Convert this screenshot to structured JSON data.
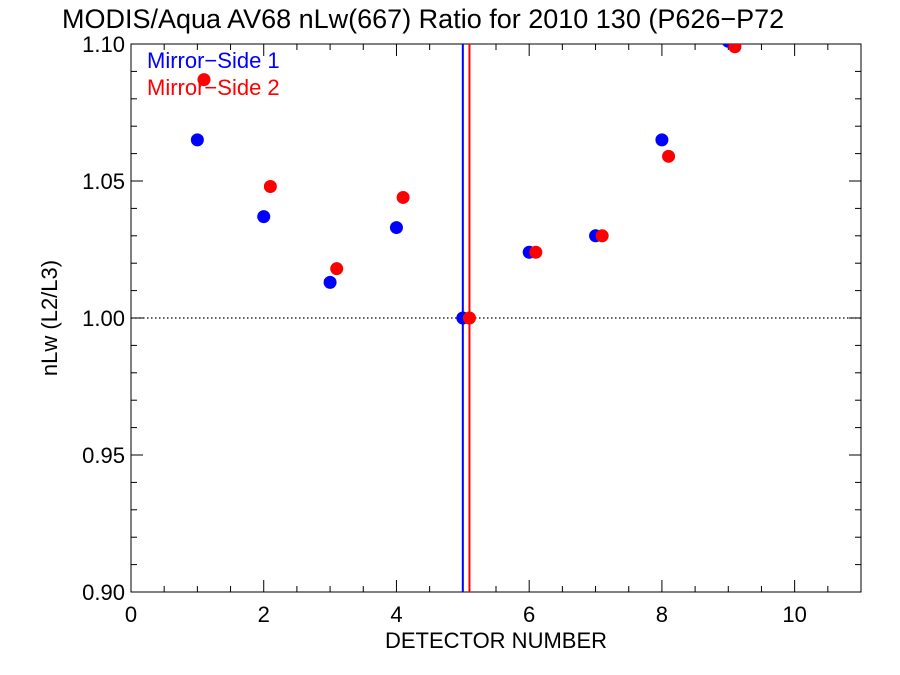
{
  "chart_data": {
    "type": "scatter",
    "title": "MODIS/Aqua AV68 nLw(667) Ratio for 2010 130 (P626−P72",
    "xlabel": "DETECTOR NUMBER",
    "ylabel": "nLw (L2/L3)",
    "xlim": [
      0,
      11
    ],
    "ylim": [
      0.9,
      1.1
    ],
    "x_ticks": [
      0,
      2,
      4,
      6,
      8,
      10
    ],
    "x_tick_labels": [
      "0",
      "2",
      "4",
      "6",
      "8",
      "10"
    ],
    "y_ticks": [
      0.9,
      0.95,
      1.0,
      1.05,
      1.1
    ],
    "y_tick_labels": [
      "0.90",
      "0.95",
      "1.00",
      "1.05",
      "1.10"
    ],
    "reference_line": 1.0,
    "legend_position": "top-left",
    "series": [
      {
        "name": "Mirror−Side 1",
        "color": "#0000ff",
        "x": [
          1,
          2,
          3,
          4,
          5,
          6,
          7,
          8,
          9
        ],
        "y": [
          1.065,
          1.037,
          1.013,
          1.033,
          1.0,
          1.024,
          1.03,
          1.065,
          1.101
        ],
        "vertical_line_x": 5.0
      },
      {
        "name": "Mirror−Side 2",
        "color": "#ff0000",
        "x": [
          1.1,
          2.1,
          3.1,
          4.1,
          5.1,
          6.1,
          7.1,
          8.1,
          9.1
        ],
        "y": [
          1.087,
          1.048,
          1.018,
          1.044,
          1.0,
          1.024,
          1.03,
          1.059,
          1.099
        ],
        "vertical_line_x": 5.1
      }
    ]
  }
}
